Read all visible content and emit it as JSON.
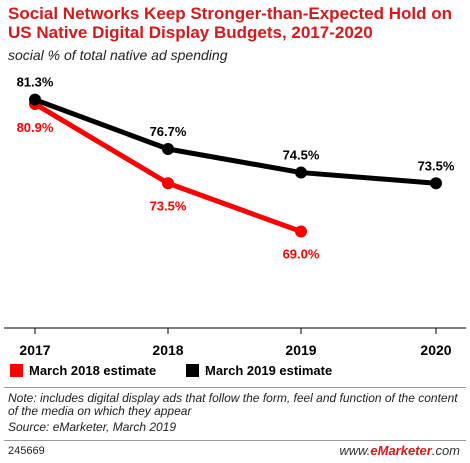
{
  "title": "Social Networks Keep Stronger-than-Expected Hold on US Native Digital Display Budgets, 2017-2020",
  "subtitle": "social % of total native ad spending",
  "note": "Note: includes digital display ads that follow the form, feel and function of the content of the media on which they appear",
  "source": "Source: eMarketer, March 2019",
  "chart_id": "245669",
  "brand": {
    "prefix": "www.",
    "name": "eMarketer",
    "suffix": ".com"
  },
  "colors": {
    "red": "#ff0000",
    "black": "#000000",
    "title": "#d7191c"
  },
  "chart_data": {
    "type": "line",
    "categories": [
      "2017",
      "2018",
      "2019",
      "2020"
    ],
    "ylim": [
      60,
      85
    ],
    "grid": false,
    "legend_position": "bottom",
    "series": [
      {
        "name": "March 2018 estimate",
        "color": "#ff0000",
        "values": [
          80.9,
          73.5,
          69.0,
          null
        ],
        "labels": [
          "80.9%",
          "73.5%",
          "69.0%",
          null
        ]
      },
      {
        "name": "March 2019 estimate",
        "color": "#000000",
        "values": [
          81.3,
          76.7,
          74.5,
          73.5
        ],
        "labels": [
          "81.3%",
          "76.7%",
          "74.5%",
          "73.5%"
        ]
      }
    ]
  }
}
